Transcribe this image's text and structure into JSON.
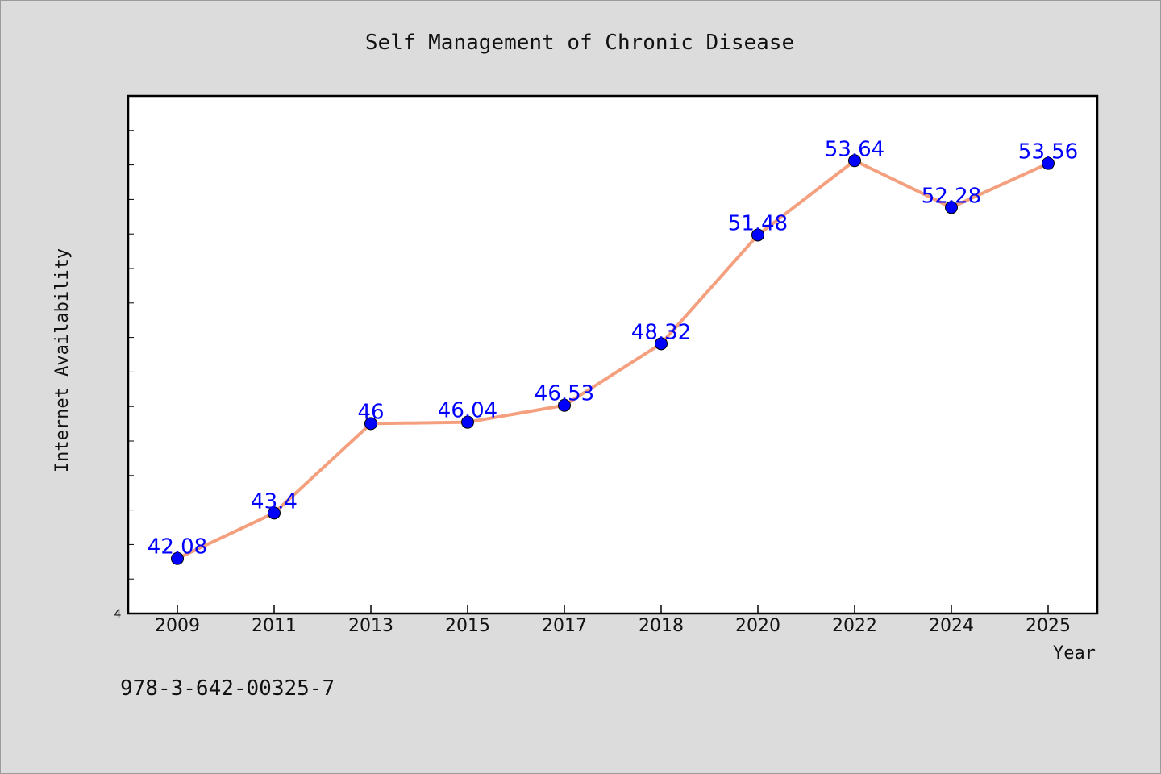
{
  "caption": "978-3-642-00325-7",
  "chart_data": {
    "type": "line",
    "title": "Self Management of Chronic Disease",
    "xlabel": "Year",
    "ylabel": "Internet Availability",
    "categories": [
      "2009",
      "2011",
      "2013",
      "2015",
      "2017",
      "2018",
      "2020",
      "2022",
      "2024",
      "2025"
    ],
    "series": [
      {
        "values": [
          42.08,
          43.4,
          46,
          46.04,
          46.53,
          48.32,
          51.48,
          53.64,
          52.28,
          53.56
        ],
        "data_labels": [
          "42.08",
          "43.4",
          "46",
          "46.04",
          "46.53",
          "48.32",
          "51.48",
          "53.64",
          "52.28",
          "53.56"
        ],
        "line_color": "#f4a07f",
        "marker_color": "#0000ff"
      }
    ],
    "ylim": [
      40.48,
      55.52
    ],
    "y_tick_labels": [
      "4"
    ],
    "grid": false,
    "legend": "none"
  }
}
